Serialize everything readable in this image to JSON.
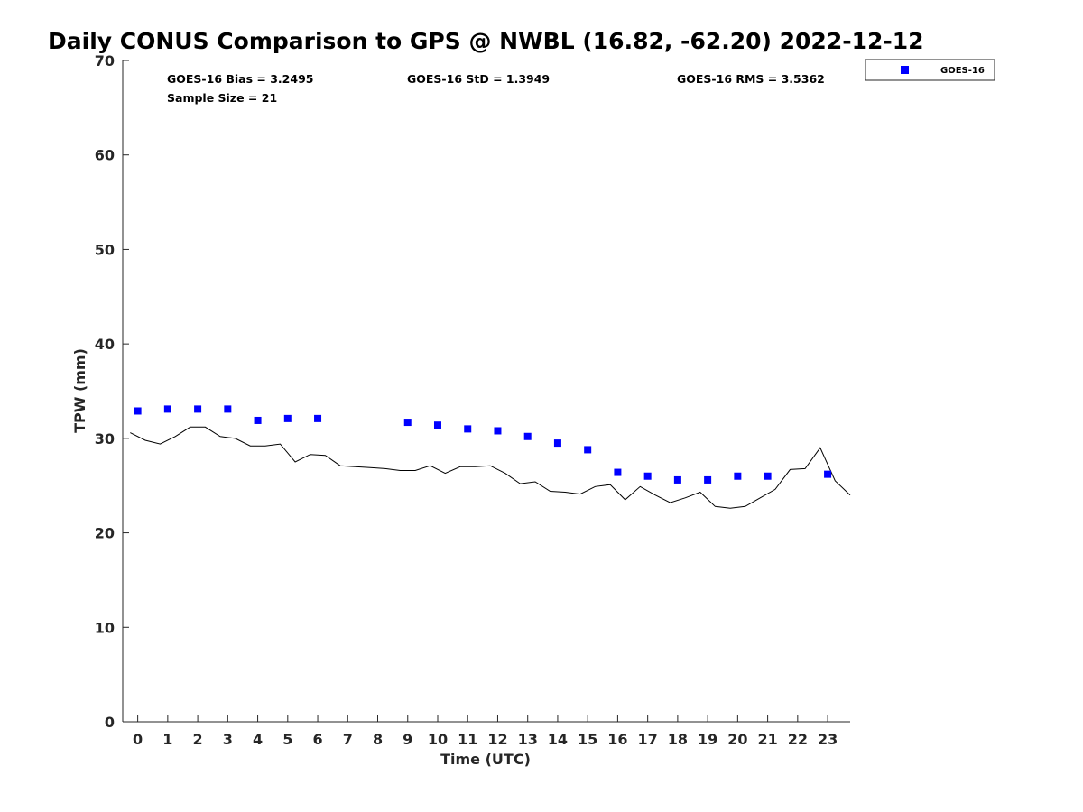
{
  "chart_data": {
    "type": "scatter",
    "title": "Daily CONUS Comparison to GPS @ NWBL (16.82, -62.20) 2022-12-12",
    "xlabel": "Time (UTC)",
    "ylabel": "TPW (mm)",
    "xlim": [
      -0.5,
      23.75
    ],
    "ylim": [
      0,
      70
    ],
    "x_ticks": [
      0,
      1,
      2,
      3,
      4,
      5,
      6,
      7,
      8,
      9,
      10,
      11,
      12,
      13,
      14,
      15,
      16,
      17,
      18,
      19,
      20,
      21,
      22,
      23
    ],
    "y_ticks": [
      0,
      10,
      20,
      30,
      40,
      50,
      60,
      70
    ],
    "grid": false,
    "legend_position": "top-right, outside plot",
    "stats": {
      "bias": "GOES-16 Bias = 3.2495",
      "std": "GOES-16 StD = 1.3949",
      "rms": "GOES-16 RMS = 3.5362",
      "sample": "Sample Size = 21"
    },
    "series": [
      {
        "name": "GOES-16",
        "kind": "scatter",
        "marker": "square",
        "color": "#0000ff",
        "x": [
          0,
          1,
          2,
          3,
          4,
          5,
          6,
          9,
          10,
          11,
          12,
          13,
          14,
          15,
          16,
          17,
          18,
          19,
          20,
          21,
          23
        ],
        "y": [
          32.9,
          33.1,
          33.1,
          33.1,
          31.9,
          32.1,
          32.1,
          31.7,
          31.4,
          31.0,
          30.8,
          30.2,
          29.5,
          28.8,
          26.4,
          26.0,
          25.6,
          25.6,
          26.0,
          26.0,
          26.2
        ]
      },
      {
        "kind": "line",
        "color": "#000000",
        "x": [
          -0.25,
          0.25,
          0.75,
          1.25,
          1.75,
          2.25,
          2.75,
          3.25,
          3.75,
          4.25,
          4.75,
          5.25,
          5.75,
          6.25,
          6.75,
          7.25,
          7.75,
          8.25,
          8.75,
          9.25,
          9.75,
          10.25,
          10.75,
          11.25,
          11.75,
          12.25,
          12.75,
          13.25,
          13.75,
          14.25,
          14.75,
          15.25,
          15.75,
          16.25,
          16.75,
          17.25,
          17.75,
          18.25,
          18.75,
          19.25,
          19.75,
          20.25,
          20.75,
          21.25,
          21.75,
          22.25,
          22.75,
          23.25,
          23.75
        ],
        "y": [
          30.6,
          29.8,
          29.4,
          30.2,
          31.2,
          31.2,
          30.2,
          30.0,
          29.2,
          29.2,
          29.4,
          27.5,
          28.3,
          28.2,
          27.1,
          27.0,
          26.9,
          26.8,
          26.6,
          26.6,
          27.1,
          26.3,
          27.0,
          27.0,
          27.1,
          26.3,
          25.2,
          25.4,
          24.4,
          24.3,
          24.1,
          24.9,
          25.1,
          23.5,
          24.9,
          24.0,
          23.2,
          23.7,
          24.3,
          22.8,
          22.6,
          22.8,
          23.7,
          24.6,
          26.7,
          26.8,
          29.0,
          25.5,
          24.0
        ]
      }
    ]
  }
}
